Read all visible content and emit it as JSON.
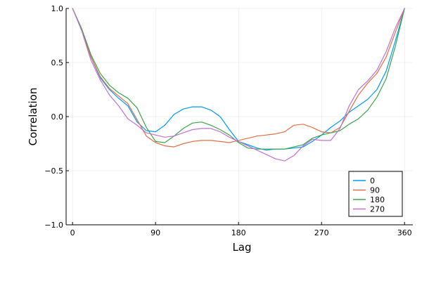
{
  "chart_data": {
    "type": "line",
    "title": "",
    "xlabel": "Lag",
    "ylabel": "Correlation",
    "xlim": [
      -7,
      369
    ],
    "ylim": [
      -1.0,
      1.0
    ],
    "xticks": [
      0,
      90,
      180,
      270,
      360
    ],
    "xtick_labels": [
      "0",
      "90",
      "180",
      "270",
      "360"
    ],
    "yticks": [
      -1.0,
      -0.5,
      0.0,
      0.5,
      1.0
    ],
    "ytick_labels": [
      "−1.0",
      "−0.5",
      "0.0",
      "0.5",
      "1.0"
    ],
    "grid": true,
    "legend_position": "bottom-right",
    "series": [
      {
        "name": "0",
        "color": "#009af9",
        "x": [
          0,
          10,
          20,
          30,
          40,
          50,
          60,
          70,
          80,
          90,
          100,
          110,
          120,
          130,
          140,
          150,
          160,
          170,
          180,
          190,
          200,
          210,
          220,
          230,
          240,
          250,
          260,
          270,
          280,
          290,
          300,
          310,
          320,
          330,
          340,
          350,
          360
        ],
        "y": [
          1.0,
          0.8,
          0.55,
          0.36,
          0.25,
          0.17,
          0.1,
          -0.05,
          -0.13,
          -0.14,
          -0.08,
          0.02,
          0.07,
          0.09,
          0.09,
          0.06,
          0.0,
          -0.12,
          -0.23,
          -0.26,
          -0.29,
          -0.31,
          -0.3,
          -0.3,
          -0.29,
          -0.28,
          -0.23,
          -0.17,
          -0.1,
          -0.04,
          0.04,
          0.1,
          0.16,
          0.25,
          0.42,
          0.7,
          1.0
        ]
      },
      {
        "name": "90",
        "color": "#e26f46",
        "x": [
          0,
          10,
          20,
          30,
          40,
          50,
          60,
          70,
          80,
          90,
          100,
          110,
          120,
          130,
          140,
          150,
          160,
          170,
          180,
          190,
          200,
          210,
          220,
          230,
          240,
          250,
          260,
          270,
          280,
          290,
          300,
          310,
          320,
          330,
          340,
          350,
          360
        ],
        "y": [
          1.0,
          0.8,
          0.55,
          0.37,
          0.26,
          0.19,
          0.12,
          -0.03,
          -0.18,
          -0.24,
          -0.27,
          -0.28,
          -0.25,
          -0.23,
          -0.22,
          -0.22,
          -0.23,
          -0.24,
          -0.22,
          -0.2,
          -0.18,
          -0.17,
          -0.16,
          -0.14,
          -0.08,
          -0.07,
          -0.1,
          -0.14,
          -0.15,
          -0.1,
          0.05,
          0.2,
          0.31,
          0.4,
          0.55,
          0.78,
          1.0
        ]
      },
      {
        "name": "180",
        "color": "#3da44d",
        "x": [
          0,
          10,
          20,
          30,
          40,
          50,
          60,
          70,
          80,
          90,
          100,
          110,
          120,
          130,
          140,
          150,
          160,
          170,
          180,
          190,
          200,
          210,
          220,
          230,
          240,
          250,
          260,
          270,
          280,
          290,
          300,
          310,
          320,
          330,
          340,
          350,
          360
        ],
        "y": [
          1.0,
          0.81,
          0.57,
          0.4,
          0.29,
          0.22,
          0.17,
          0.08,
          -0.1,
          -0.23,
          -0.24,
          -0.18,
          -0.11,
          -0.06,
          -0.05,
          -0.08,
          -0.12,
          -0.17,
          -0.24,
          -0.29,
          -0.3,
          -0.3,
          -0.3,
          -0.3,
          -0.28,
          -0.26,
          -0.2,
          -0.17,
          -0.15,
          -0.13,
          -0.07,
          -0.02,
          0.06,
          0.18,
          0.35,
          0.65,
          1.0
        ]
      },
      {
        "name": "270",
        "color": "#c271d2",
        "x": [
          0,
          10,
          20,
          30,
          40,
          50,
          60,
          70,
          80,
          90,
          100,
          110,
          120,
          130,
          140,
          150,
          160,
          170,
          180,
          190,
          200,
          210,
          220,
          230,
          240,
          250,
          260,
          270,
          280,
          290,
          300,
          310,
          320,
          330,
          340,
          350,
          360
        ],
        "y": [
          1.0,
          0.79,
          0.52,
          0.34,
          0.2,
          0.1,
          -0.02,
          -0.08,
          -0.15,
          -0.17,
          -0.19,
          -0.18,
          -0.15,
          -0.12,
          -0.11,
          -0.11,
          -0.14,
          -0.19,
          -0.23,
          -0.27,
          -0.31,
          -0.35,
          -0.39,
          -0.41,
          -0.36,
          -0.27,
          -0.21,
          -0.22,
          -0.22,
          -0.11,
          0.1,
          0.25,
          0.33,
          0.43,
          0.6,
          0.82,
          1.0
        ]
      }
    ]
  }
}
